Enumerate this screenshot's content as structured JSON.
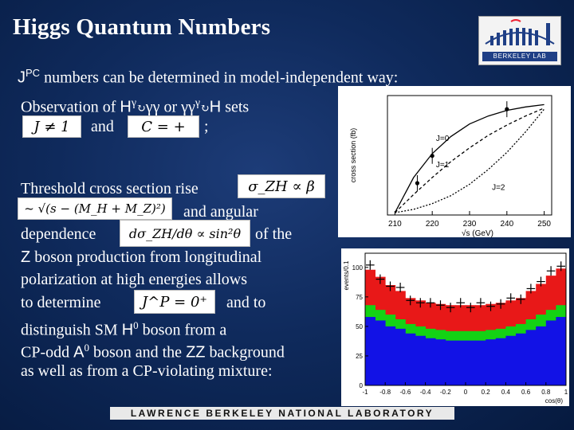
{
  "slide": {
    "title": "Higgs Quantum Numbers",
    "logo_text": "BERKELEY LAB",
    "footer": "LAWRENCE BERKELEY NATIONAL LABORATORY",
    "text": {
      "l1_a": "J",
      "l1_sup": "PC",
      "l1_b": " numbers can be determined in model-independent way:",
      "l2_a": "Observation of ",
      "l2_b": "H",
      "l2_c": "γ",
      "l2_d": "γγ  or ",
      "l2_e": "γγ",
      "l2_f": "γ",
      "l2_g": "H",
      "l2_h": " sets",
      "and1": "and",
      "semicolon": ";",
      "thr": "Threshold cross section rise",
      "and_ang": "and angular",
      "dep": "dependence",
      "ofthe": "of the",
      "z_boson_a": "Z",
      "z_boson_b": " boson production from longitudinal",
      "polar": "polarization at high energies allows",
      "todet": "to determine",
      "andto": "and to",
      "dist_a": "distinguish SM ",
      "dist_b": "H",
      "dist_sup": "0",
      "dist_c": " boson from a",
      "cp_a": "CP-odd ",
      "cp_b": "A",
      "cp_sup": "0",
      "cp_c": " boson and the ",
      "cp_d": "ZZ",
      "cp_e": " background",
      "aswell": "as well as from a CP-violating mixture:"
    },
    "equations": {
      "eq_j": "J ≠ 1",
      "eq_c": "C = +",
      "eq_sigma": "σ_ZH ∝ β",
      "eq_sqrt": "~ √(s − (M_H + M_Z)²)",
      "eq_ang": "dσ_ZH/dθ ∝ sin²θ",
      "eq_jp": "J^P = 0⁺"
    }
  },
  "chart_data": [
    {
      "type": "line",
      "title": "",
      "xlabel": "√s (GeV)",
      "ylabel": "cross section (fb)",
      "x_ticks": [
        "210",
        "220",
        "230",
        "240",
        "250"
      ],
      "series": [
        {
          "name": "J=0",
          "x": [
            210,
            215,
            220,
            225,
            230,
            235,
            240,
            245,
            250
          ],
          "y": [
            0.02,
            0.33,
            0.54,
            0.69,
            0.8,
            0.87,
            0.92,
            0.95,
            0.97
          ]
        },
        {
          "name": "J=1",
          "x": [
            210,
            215,
            220,
            225,
            230,
            235,
            240,
            245,
            250
          ],
          "y": [
            0.02,
            0.18,
            0.33,
            0.47,
            0.59,
            0.7,
            0.79,
            0.87,
            0.94
          ]
        },
        {
          "name": "J=2",
          "x": [
            210,
            215,
            220,
            225,
            230,
            235,
            240,
            245,
            250
          ],
          "y": [
            0.02,
            0.05,
            0.1,
            0.17,
            0.27,
            0.4,
            0.55,
            0.73,
            0.93
          ]
        }
      ],
      "points": {
        "x": [
          216,
          220,
          240
        ],
        "y": [
          0.28,
          0.52,
          0.93
        ],
        "err": [
          0.07,
          0.07,
          0.07
        ]
      }
    },
    {
      "type": "area",
      "title": "",
      "xlabel": "cos(θ)",
      "ylabel": "events/0.1",
      "x_ticks": [
        "-1",
        "-0.8",
        "-0.6",
        "-0.4",
        "-0.2",
        "0",
        "0.2",
        "0.4",
        "0.6",
        "0.8",
        "1"
      ],
      "y_ticks": [
        "100",
        "75",
        "50",
        "25",
        "0"
      ],
      "ylim": [
        0,
        112
      ],
      "x": [
        -0.95,
        -0.85,
        -0.75,
        -0.65,
        -0.55,
        -0.45,
        -0.35,
        -0.25,
        -0.15,
        -0.05,
        0.05,
        0.15,
        0.25,
        0.35,
        0.45,
        0.55,
        0.65,
        0.75,
        0.85,
        0.95
      ],
      "series": [
        {
          "name": "blue",
          "color": "#1212e6",
          "values": [
            58,
            55,
            50,
            48,
            44,
            42,
            40,
            39,
            38,
            38,
            38,
            38,
            39,
            40,
            42,
            44,
            47,
            50,
            55,
            58
          ]
        },
        {
          "name": "green",
          "color": "#14d214",
          "values": [
            68,
            64,
            60,
            56,
            52,
            50,
            48,
            47,
            46,
            46,
            46,
            46,
            47,
            48,
            50,
            52,
            56,
            60,
            64,
            68
          ]
        },
        {
          "name": "red",
          "color": "#e81818",
          "values": [
            98,
            92,
            85,
            80,
            74,
            72,
            70,
            69,
            68,
            68,
            68,
            68,
            69,
            70,
            72,
            74,
            80,
            86,
            93,
            99
          ]
        }
      ],
      "points": {
        "values": [
          102,
          90,
          84,
          83,
          72,
          70,
          70,
          68,
          66,
          70,
          66,
          70,
          67,
          69,
          74,
          73,
          82,
          88,
          97,
          101
        ]
      }
    }
  ]
}
